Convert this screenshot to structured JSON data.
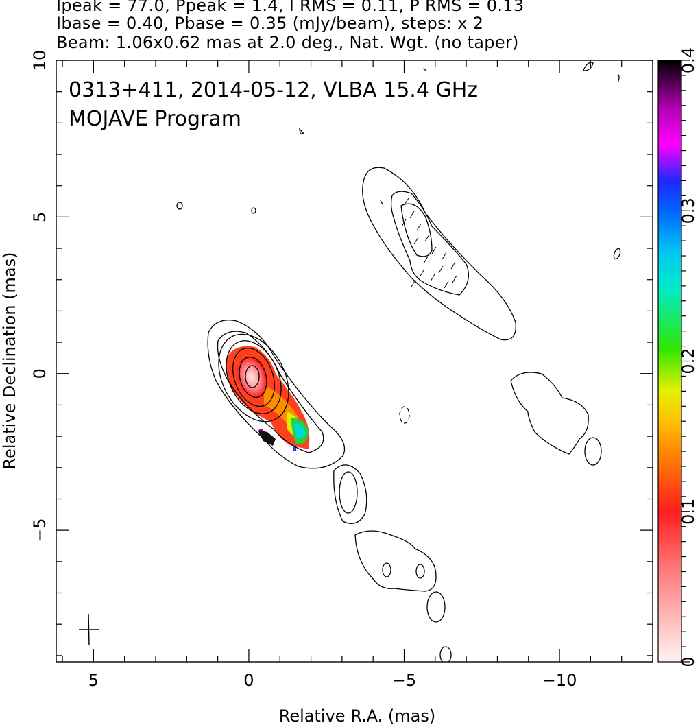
{
  "header": {
    "line1": "Ipeak = 77.0, Ppeak = 1.4, I RMS = 0.11, P RMS = 0.13",
    "line2": "Ibase = 0.40, Pbase = 0.35 (mJy/beam), steps: x 2",
    "line3": "Beam: 1.06x0.62 mas at 2.0 deg., Nat. Wgt. (no taper)"
  },
  "chart_data": {
    "type": "heatmap",
    "title": "0313+411, 2014-05-12, VLBA 15.4 GHz",
    "subtitle": "MOJAVE Program",
    "xlabel": "Relative R.A. (mas)",
    "ylabel": "Relative Declination (mas)",
    "xlim": [
      6.2,
      -13.0
    ],
    "ylim": [
      -9.2,
      10.0
    ],
    "xticks": [
      5,
      0,
      -5,
      -10
    ],
    "xtick_labels": [
      "5",
      "0",
      "−5",
      "−10"
    ],
    "yticks": [
      10,
      5,
      0,
      -5
    ],
    "ytick_labels": [
      "10",
      "5",
      "0",
      "−5"
    ],
    "colorbar": {
      "min": 0,
      "max": 0.4,
      "ticks": [
        0,
        0.1,
        0.2,
        0.3,
        0.4
      ],
      "tick_labels": [
        "0",
        "0.1",
        "0.2",
        "0.3",
        "0.4"
      ]
    },
    "beam": {
      "major_mas": 1.06,
      "minor_mas": 0.62,
      "pa_deg": 2.0,
      "center": [
        5.0,
        -8.2
      ]
    }
  }
}
